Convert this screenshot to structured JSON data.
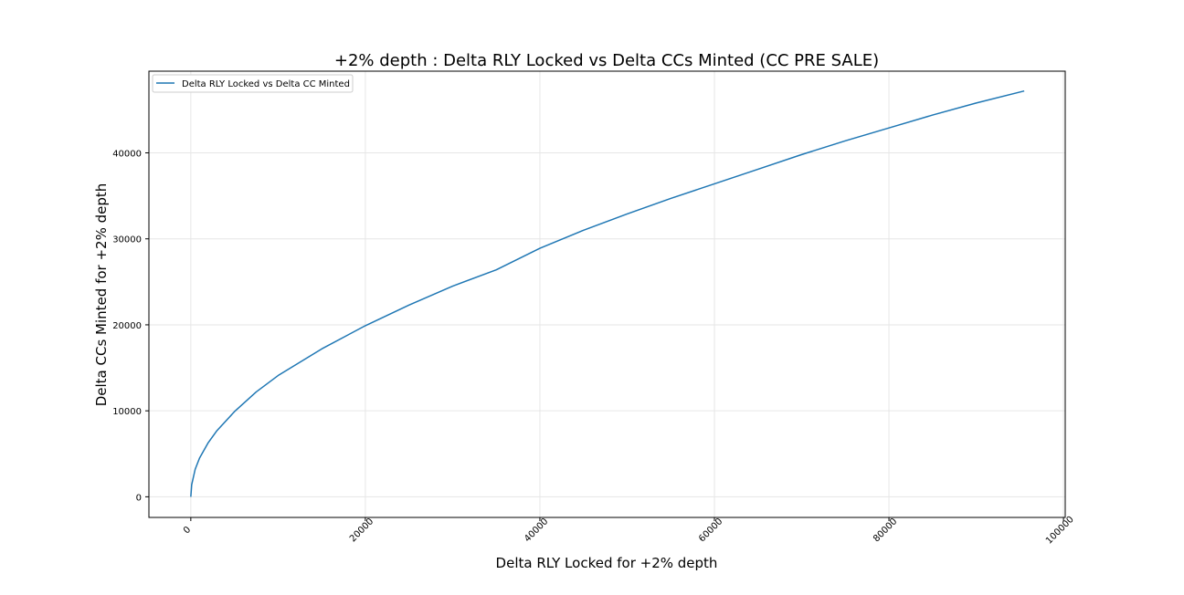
{
  "chart_data": {
    "type": "line",
    "title": "+2% depth : Delta RLY Locked vs Delta CCs Minted (CC PRE SALE)",
    "xlabel": "Delta RLY Locked for +2% depth",
    "ylabel": "Delta CCs Minted for +2% depth",
    "xlim": [
      -4800,
      100200
    ],
    "ylim": [
      -2400,
      49500
    ],
    "xticks": [
      0,
      20000,
      40000,
      60000,
      80000,
      100000
    ],
    "xtick_labels": [
      "0",
      "20000",
      "40000",
      "60000",
      "80000",
      "100000"
    ],
    "xtick_rotation": 45,
    "yticks": [
      0,
      10000,
      20000,
      30000,
      40000
    ],
    "ytick_labels": [
      "0",
      "10000",
      "20000",
      "30000",
      "40000"
    ],
    "grid": true,
    "legend_position": "upper-left",
    "series": [
      {
        "name": "Delta RLY Locked vs Delta CC Minted",
        "color": "#1f77b4",
        "x": [
          0,
          100,
          500,
          1000,
          2000,
          3000,
          5000,
          7500,
          10000,
          15000,
          20000,
          25000,
          30000,
          35000,
          40000,
          45000,
          50000,
          55000,
          60000,
          65000,
          70000,
          75000,
          80000,
          85000,
          90000,
          95500
        ],
        "y": [
          0,
          1400,
          3200,
          4500,
          6300,
          7700,
          9900,
          12200,
          14100,
          17200,
          19900,
          22300,
          24500,
          26400,
          28900,
          31000,
          32900,
          34700,
          36400,
          38100,
          39800,
          41400,
          42900,
          44400,
          45800,
          47200
        ]
      }
    ]
  }
}
